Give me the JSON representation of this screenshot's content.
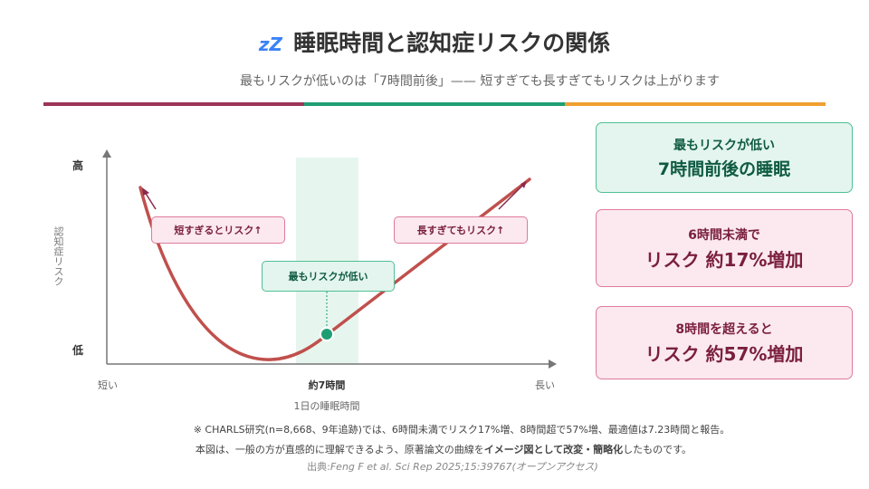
{
  "header": {
    "icon": "zzz-sleep-icon",
    "icon_text": "zZ",
    "title": "睡眠時間と認知症リスクの関係",
    "subtitle": "最もリスクが低いのは「7時間前後」—— 短すぎても長すぎてもリスクは上がります"
  },
  "colors": {
    "maroon": "#9b3558",
    "green": "#1f9e74",
    "orange": "#f0a030",
    "curve": "#c0504d"
  },
  "chart": {
    "y_axis_label": "認知症リスク",
    "y_high": "高",
    "y_low": "低",
    "x_axis_label": "1日の睡眠時間",
    "x_short": "短い",
    "x_mid": "約7時間",
    "x_long": "長い",
    "callout_short": "短すぎるとリスク↑",
    "callout_long": "長すぎてもリスク↑",
    "callout_min": "最もリスクが低い"
  },
  "cards": [
    {
      "line1": "最もリスクが低い",
      "line2": "7時間前後の睡眠"
    },
    {
      "line1": "6時間未満で",
      "line2": "リスク 約17%増加"
    },
    {
      "line1": "8時間を超えると",
      "line2": "リスク 約57%増加"
    }
  ],
  "footer": {
    "note1": "※ CHARLS研究(n=8,668、9年追跡)では、6時間未満でリスク17%増、8時間超で57%増、最適値は7.23時間と報告。",
    "note2a": "本図は、一般の方が直感的に理解できるよう、原著論文の曲線を",
    "note2b": "イメージ図として改変・簡略化",
    "note2c": "したものです。",
    "source_label": "出典:",
    "source": "Feng F et al. Sci Rep 2025;15:39767",
    "source_suffix": "(オープンアクセス)"
  }
}
